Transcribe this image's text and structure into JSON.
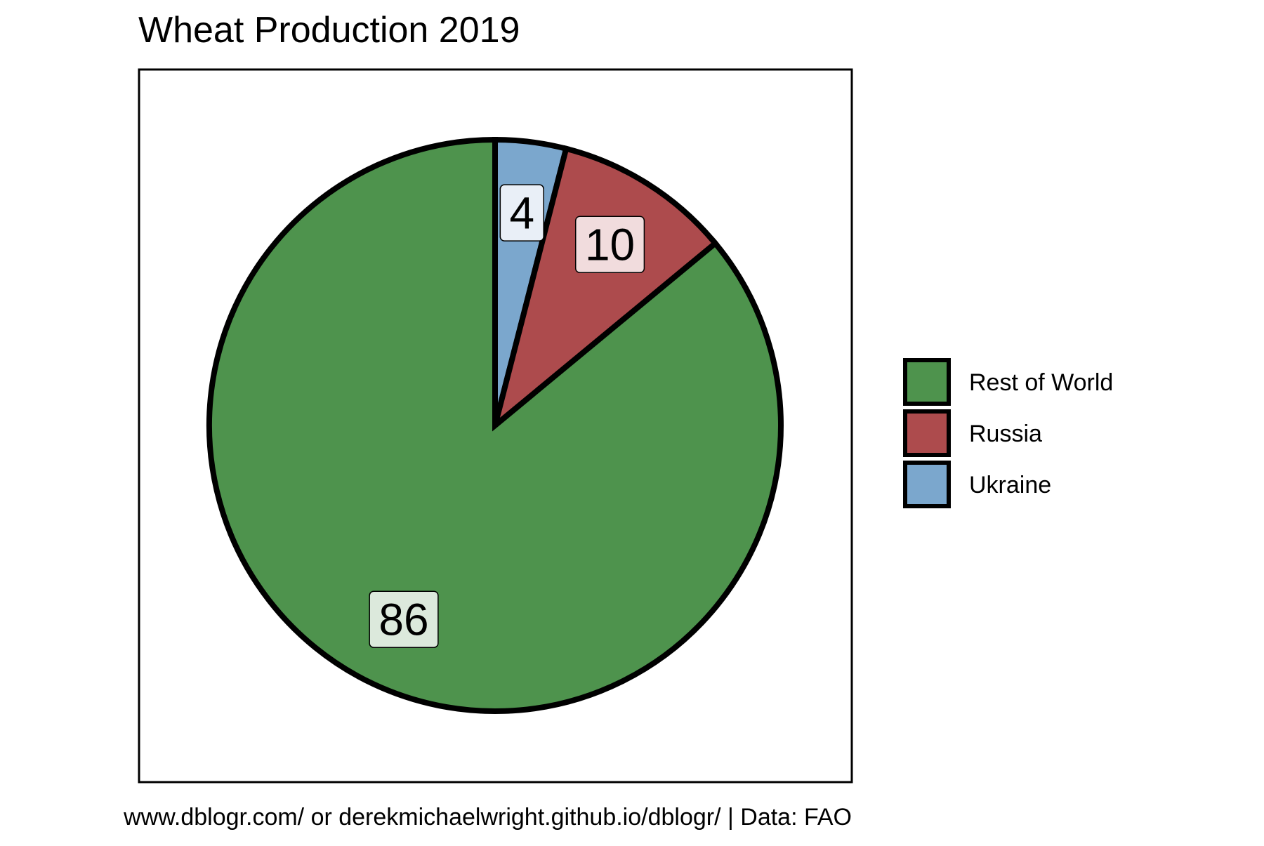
{
  "chart_data": {
    "type": "pie",
    "title": "Wheat Production 2019",
    "caption": "www.dblogr.com/ or derekmichaelwright.github.io/dblogr/ | Data: FAO",
    "slices": [
      {
        "label": "Ukraine",
        "value": 4,
        "color": "#7ba7cd",
        "label_bg": "#e9eff7"
      },
      {
        "label": "Russia",
        "value": 10,
        "color": "#ad4b4d",
        "label_bg": "#f1dcdd"
      },
      {
        "label": "Rest of World",
        "value": 86,
        "color": "#4e934d",
        "label_bg": "#dce9dc"
      }
    ],
    "legend": {
      "position": "right",
      "order": [
        "Rest of World",
        "Russia",
        "Ukraine"
      ]
    }
  }
}
